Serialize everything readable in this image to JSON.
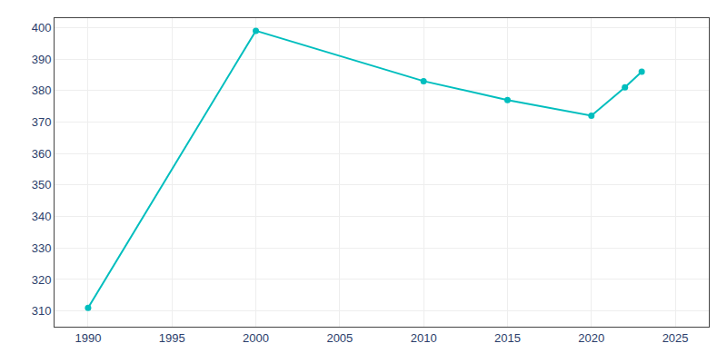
{
  "chart_data": {
    "type": "line",
    "x": [
      1990,
      2000,
      2010,
      2015,
      2020,
      2022,
      2023
    ],
    "values": [
      311,
      399,
      383,
      377,
      372,
      381,
      386
    ],
    "color": "#00BEBE",
    "marker": "circle",
    "line_style": "solid",
    "xlim": [
      1988,
      2027
    ],
    "xticks": [
      1990,
      1995,
      2000,
      2005,
      2010,
      2015,
      2020,
      2025
    ],
    "ylim": [
      305,
      403
    ],
    "yticks": [
      310,
      320,
      330,
      340,
      350,
      360,
      370,
      380,
      390,
      400
    ],
    "grid": true
  }
}
